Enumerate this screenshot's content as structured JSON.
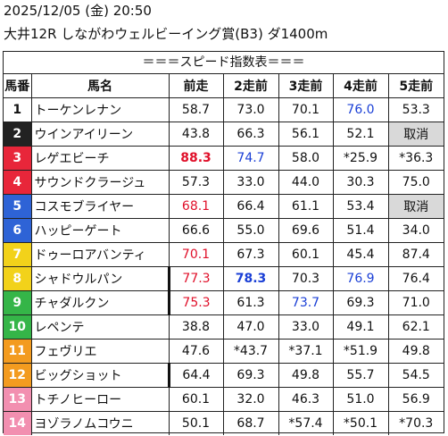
{
  "header": {
    "line1": "2025/12/05 (金) 20:50",
    "line2": "大井12R しながわウェルビーイング賞(B3) ダ1400m"
  },
  "table": {
    "caption": "＝＝＝スピード指数表＝＝＝",
    "columns": [
      "馬番",
      "馬名",
      "前走",
      "2走前",
      "3走前",
      "4走前",
      "5走前"
    ],
    "rows": [
      {
        "num": "1",
        "name": "トーケンレナン",
        "bg": "#ffffff",
        "fg": "#111111",
        "cells": [
          {
            "t": "58.7"
          },
          {
            "t": "73.0"
          },
          {
            "t": "70.1"
          },
          {
            "t": "76.0",
            "c": "blue"
          },
          {
            "t": "53.3"
          }
        ]
      },
      {
        "num": "2",
        "name": "ウインアイリーン",
        "bg": "#222222",
        "fg": "#ffffff",
        "cells": [
          {
            "t": "43.8"
          },
          {
            "t": "66.3"
          },
          {
            "t": "56.1"
          },
          {
            "t": "52.1"
          },
          {
            "t": "取消",
            "blank": true
          }
        ]
      },
      {
        "num": "3",
        "name": "レゲエビーチ",
        "bg": "#e8263a",
        "fg": "#ffffff",
        "cells": [
          {
            "t": "88.3",
            "c": "red",
            "b": true
          },
          {
            "t": "74.7",
            "c": "blue"
          },
          {
            "t": "58.0"
          },
          {
            "t": "*25.9"
          },
          {
            "t": "*36.3"
          }
        ]
      },
      {
        "num": "4",
        "name": "サウンドクラージュ",
        "bg": "#e8263a",
        "fg": "#ffffff",
        "cells": [
          {
            "t": "57.3"
          },
          {
            "t": "33.0"
          },
          {
            "t": "44.0"
          },
          {
            "t": "30.3"
          },
          {
            "t": "75.0"
          }
        ]
      },
      {
        "num": "5",
        "name": "コスモブライヤー",
        "bg": "#2e63d6",
        "fg": "#ffffff",
        "cells": [
          {
            "t": "68.1",
            "c": "red"
          },
          {
            "t": "66.4"
          },
          {
            "t": "61.1"
          },
          {
            "t": "53.4"
          },
          {
            "t": "取消",
            "blank": true
          }
        ]
      },
      {
        "num": "6",
        "name": "ハッピーゲート",
        "bg": "#2e63d6",
        "fg": "#ffffff",
        "cells": [
          {
            "t": "66.6"
          },
          {
            "t": "55.0"
          },
          {
            "t": "69.6"
          },
          {
            "t": "51.4"
          },
          {
            "t": "34.0"
          }
        ]
      },
      {
        "num": "7",
        "name": "ドゥーロアバンティ",
        "bg": "#f2d21a",
        "fg": "#ffffff",
        "cells": [
          {
            "t": "70.1",
            "c": "red"
          },
          {
            "t": "67.3"
          },
          {
            "t": "60.1"
          },
          {
            "t": "45.4"
          },
          {
            "t": "87.4"
          }
        ]
      },
      {
        "num": "8",
        "name": "シャドウルパン",
        "bg": "#f2d21a",
        "fg": "#ffffff",
        "cells": [
          {
            "t": "77.3",
            "c": "red",
            "lthick": true
          },
          {
            "t": "78.3",
            "c": "blue",
            "b": true
          },
          {
            "t": "70.3"
          },
          {
            "t": "76.9",
            "c": "blue"
          },
          {
            "t": "76.4"
          }
        ]
      },
      {
        "num": "9",
        "name": "チャダルクン",
        "bg": "#35b548",
        "fg": "#ffffff",
        "cells": [
          {
            "t": "75.3",
            "c": "red",
            "lthick": true
          },
          {
            "t": "61.3"
          },
          {
            "t": "73.7",
            "c": "blue"
          },
          {
            "t": "69.3"
          },
          {
            "t": "71.0"
          }
        ]
      },
      {
        "num": "10",
        "name": "レペンテ",
        "bg": "#35b548",
        "fg": "#ffffff",
        "cells": [
          {
            "t": "38.8"
          },
          {
            "t": "47.0"
          },
          {
            "t": "33.0"
          },
          {
            "t": "49.1"
          },
          {
            "t": "62.1"
          }
        ]
      },
      {
        "num": "11",
        "name": "フェヴリエ",
        "bg": "#f39b1f",
        "fg": "#ffffff",
        "cells": [
          {
            "t": "47.6"
          },
          {
            "t": "*43.7"
          },
          {
            "t": "*37.1"
          },
          {
            "t": "*51.9"
          },
          {
            "t": "49.8"
          }
        ]
      },
      {
        "num": "12",
        "name": "ビッグショット",
        "bg": "#f39b1f",
        "fg": "#ffffff",
        "cells": [
          {
            "t": "64.4",
            "lthick": true
          },
          {
            "t": "69.3"
          },
          {
            "t": "49.8"
          },
          {
            "t": "55.7"
          },
          {
            "t": "54.5"
          }
        ]
      },
      {
        "num": "13",
        "name": "トチノヒーロー",
        "bg": "#f28fb0",
        "fg": "#ffffff",
        "cells": [
          {
            "t": "60.1"
          },
          {
            "t": "32.0"
          },
          {
            "t": "46.3"
          },
          {
            "t": "51.0"
          },
          {
            "t": "56.9"
          }
        ]
      },
      {
        "num": "14",
        "name": "ヨゾラノムコウニ",
        "bg": "#f28fb0",
        "fg": "#ffffff",
        "cells": [
          {
            "t": "50.1"
          },
          {
            "t": "68.7"
          },
          {
            "t": "*57.4"
          },
          {
            "t": "*50.1"
          },
          {
            "t": "*70.3"
          }
        ]
      }
    ]
  }
}
